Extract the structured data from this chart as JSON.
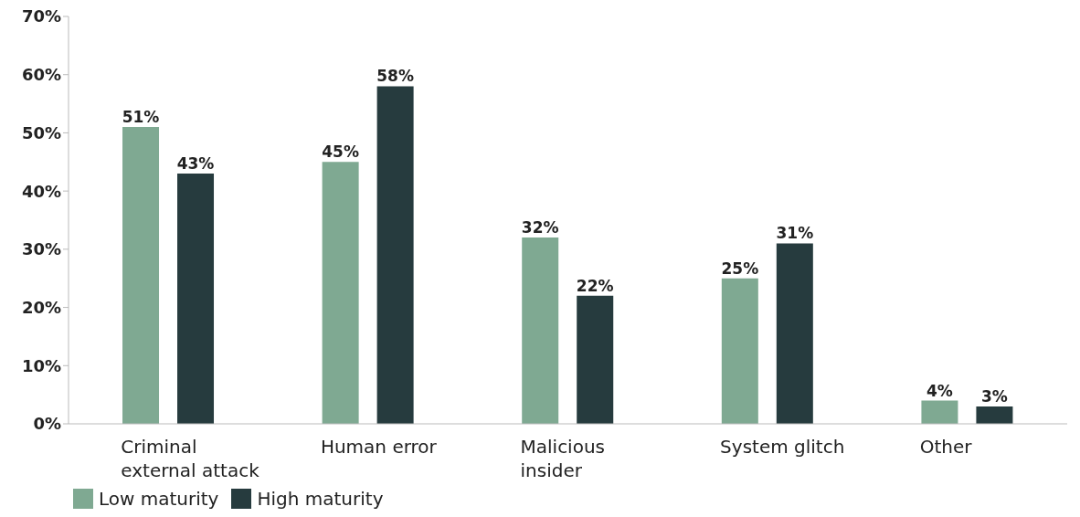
{
  "chart_data": {
    "type": "bar",
    "categories": [
      "Criminal external attack",
      "Human error",
      "Malicious insider",
      "System glitch",
      "Other"
    ],
    "series": [
      {
        "name": "Low maturity",
        "color": "#7fa992",
        "values": [
          51,
          45,
          32,
          25,
          4
        ],
        "value_labels": [
          "51%",
          "45%",
          "32%",
          "25%",
          "4%"
        ]
      },
      {
        "name": "High maturity",
        "color": "#263b3e",
        "values": [
          43,
          58,
          22,
          31,
          3
        ],
        "value_labels": [
          "43%",
          "58%",
          "22%",
          "31%",
          "3%"
        ]
      }
    ],
    "ylim": [
      0,
      70
    ],
    "yticks": [
      {
        "value": 0,
        "label": "0%"
      },
      {
        "value": 10,
        "label": "10%"
      },
      {
        "value": 20,
        "label": "20%"
      },
      {
        "value": 30,
        "label": "30%"
      },
      {
        "value": 40,
        "label": "40%"
      },
      {
        "value": 50,
        "label": "50%"
      },
      {
        "value": 60,
        "label": "60%"
      },
      {
        "value": 70,
        "label": "70%"
      }
    ],
    "grid": false,
    "legend": "bottom left"
  }
}
